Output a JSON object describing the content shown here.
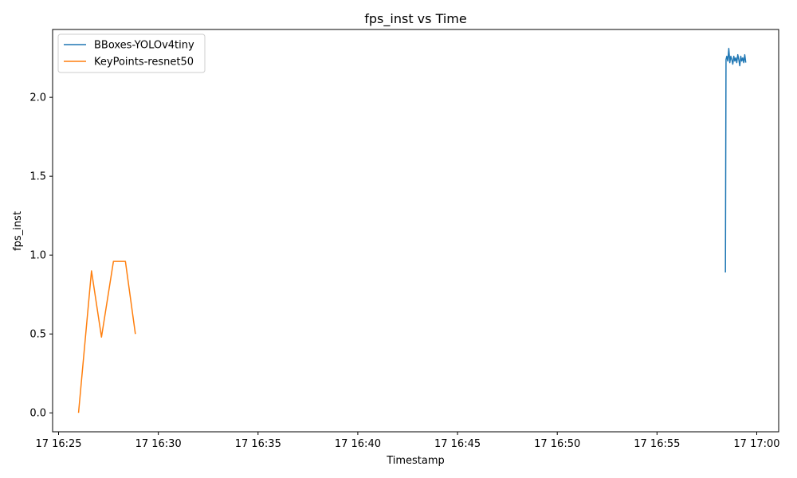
{
  "chart_data": {
    "type": "line",
    "title": "fps_inst vs Time",
    "xlabel": "Timestamp",
    "ylabel": "fps_inst",
    "x_ticks": [
      "17 16:25",
      "17 16:30",
      "17 16:35",
      "17 16:40",
      "17 16:45",
      "17 16:50",
      "17 16:55",
      "17 17:00"
    ],
    "y_ticks": [
      "0.0",
      "0.5",
      "1.0",
      "1.5",
      "2.0"
    ],
    "xlim": [
      "16:24.7",
      "17:01.1"
    ],
    "ylim": [
      -0.12,
      2.43
    ],
    "grid": false,
    "legend_position": "upper-left",
    "series": [
      {
        "name": "BBoxes-YOLOv4tiny",
        "color": "#1f77b4",
        "x": [
          "16:58.43",
          "16:58.46",
          "16:58.50",
          "16:58.55",
          "16:58.60",
          "16:58.65",
          "16:58.70",
          "16:58.75",
          "16:58.80",
          "16:58.85",
          "16:58.90",
          "16:58.95",
          "16:59.00",
          "16:59.05",
          "16:59.10",
          "16:59.15",
          "16:59.20",
          "16:59.25",
          "16:59.30",
          "16:59.35",
          "16:59.40",
          "16:59.45"
        ],
        "y": [
          0.89,
          2.24,
          2.26,
          2.23,
          2.31,
          2.22,
          2.26,
          2.24,
          2.21,
          2.26,
          2.23,
          2.25,
          2.22,
          2.27,
          2.24,
          2.2,
          2.26,
          2.23,
          2.25,
          2.22,
          2.27,
          2.22
        ]
      },
      {
        "name": "KeyPoints-resnet50",
        "color": "#ff7f0e",
        "x": [
          "16:26.0",
          "16:26.65",
          "16:27.15",
          "16:27.75",
          "16:28.35",
          "16:28.85"
        ],
        "y": [
          0.0,
          0.9,
          0.48,
          0.96,
          0.96,
          0.5
        ]
      }
    ]
  }
}
